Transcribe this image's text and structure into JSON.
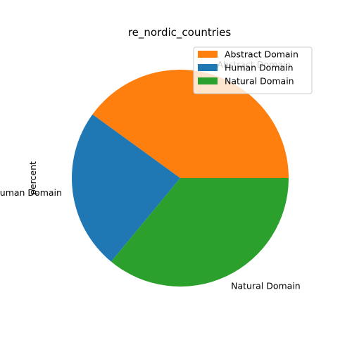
{
  "chart_data": {
    "type": "pie",
    "title": "re_nordic_countries",
    "ylabel": "percent",
    "slices": [
      {
        "label": "Abstract Domain",
        "value": 40.0,
        "color": "#ff7f0e"
      },
      {
        "label": "Human Domain",
        "value": 24.0,
        "color": "#1f77b4"
      },
      {
        "label": "Natural Domain",
        "value": 36.0,
        "color": "#2ca02c"
      }
    ],
    "start_angle_deg": 0,
    "counterclockwise": true,
    "legend": {
      "position": "top-right",
      "entries": [
        "Abstract Domain",
        "Human Domain",
        "Natural Domain"
      ]
    }
  }
}
